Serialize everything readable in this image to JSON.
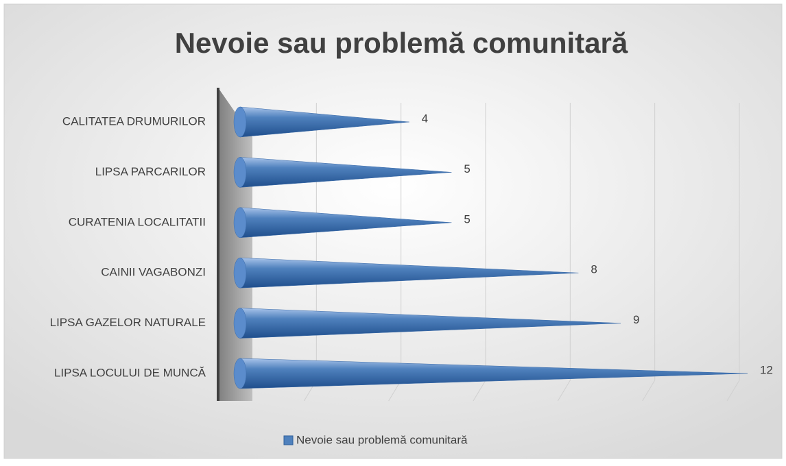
{
  "chart_data": {
    "type": "cone-bar",
    "title": "Nevoie sau problemă comunitară",
    "categories": [
      "CALITATEA DRUMURILOR",
      "LIPSA PARCARILOR",
      "CURATENIA LOCALITATII",
      "CAINII VAGABONZI",
      "LIPSA GAZELOR NATURALE",
      "LIPSA LOCULUI DE MUNCĂ"
    ],
    "series": [
      {
        "name": "Nevoie sau problemă comunitară",
        "color": "#4f81bd",
        "values": [
          4,
          5,
          5,
          8,
          9,
          12
        ]
      }
    ],
    "xlim": [
      0,
      12
    ],
    "xticks": [
      0,
      2,
      4,
      6,
      8,
      10,
      12
    ],
    "grid": true,
    "legend": "bottom"
  }
}
